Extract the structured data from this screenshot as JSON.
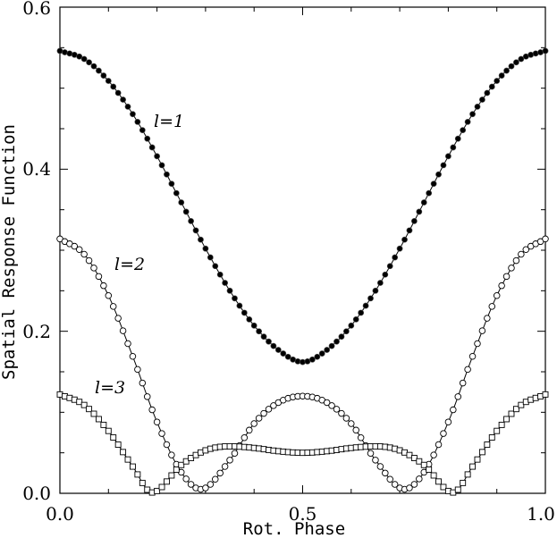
{
  "chart_data": {
    "type": "line",
    "title": "",
    "xlabel": "Rot. Phase",
    "ylabel": "Spatial Response Function",
    "xlim": [
      0.0,
      1.0
    ],
    "ylim": [
      0.0,
      0.6
    ],
    "grid": false,
    "x_ticks": [
      "0.0",
      "0.5",
      "1.0"
    ],
    "y_ticks": [
      "0.0",
      "0.2",
      "0.4",
      "0.6"
    ],
    "series": [
      {
        "name": "l=1",
        "marker": "filled-circle",
        "x": [
          0.0,
          0.05,
          0.1,
          0.15,
          0.2,
          0.25,
          0.3,
          0.35,
          0.4,
          0.45,
          0.5,
          0.55,
          0.6,
          0.65,
          0.7,
          0.75,
          0.8,
          0.85,
          0.9,
          0.95,
          1.0
        ],
        "y": [
          0.546,
          0.536,
          0.509,
          0.468,
          0.416,
          0.359,
          0.302,
          0.25,
          0.207,
          0.177,
          0.162,
          0.177,
          0.207,
          0.25,
          0.302,
          0.359,
          0.416,
          0.468,
          0.509,
          0.536,
          0.546
        ]
      },
      {
        "name": "l=2",
        "marker": "open-circle",
        "x": [
          0.0,
          0.05,
          0.1,
          0.15,
          0.2,
          0.25,
          0.29,
          0.35,
          0.4,
          0.45,
          0.5,
          0.55,
          0.6,
          0.65,
          0.71,
          0.75,
          0.8,
          0.85,
          0.9,
          0.95,
          1.0
        ],
        "y": [
          0.314,
          0.295,
          0.244,
          0.169,
          0.088,
          0.026,
          0.005,
          0.041,
          0.086,
          0.112,
          0.12,
          0.112,
          0.086,
          0.041,
          0.005,
          0.026,
          0.088,
          0.169,
          0.244,
          0.295,
          0.314
        ]
      },
      {
        "name": "l=3",
        "marker": "open-square",
        "x": [
          0.0,
          0.05,
          0.1,
          0.15,
          0.19,
          0.25,
          0.3,
          0.35,
          0.4,
          0.45,
          0.5,
          0.55,
          0.6,
          0.65,
          0.7,
          0.75,
          0.81,
          0.85,
          0.9,
          0.95,
          1.0
        ],
        "y": [
          0.122,
          0.109,
          0.077,
          0.033,
          0.001,
          0.035,
          0.053,
          0.058,
          0.056,
          0.052,
          0.05,
          0.052,
          0.056,
          0.058,
          0.053,
          0.035,
          0.001,
          0.033,
          0.077,
          0.109,
          0.122
        ]
      }
    ]
  }
}
